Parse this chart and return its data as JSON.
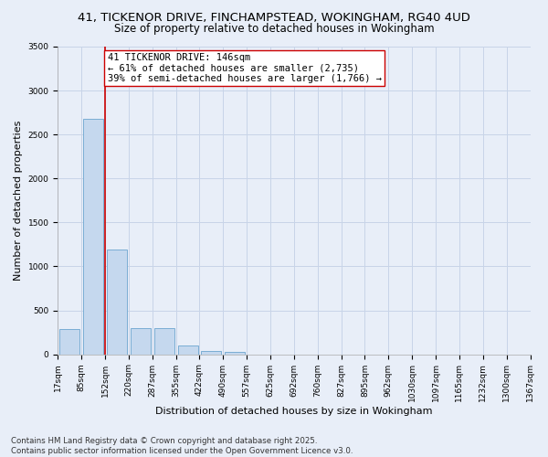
{
  "title_line1": "41, TICKENOR DRIVE, FINCHAMPSTEAD, WOKINGHAM, RG40 4UD",
  "title_line2": "Size of property relative to detached houses in Wokingham",
  "xlabel": "Distribution of detached houses by size in Wokingham",
  "ylabel": "Number of detached properties",
  "bin_labels": [
    "17sqm",
    "85sqm",
    "152sqm",
    "220sqm",
    "287sqm",
    "355sqm",
    "422sqm",
    "490sqm",
    "557sqm",
    "625sqm",
    "692sqm",
    "760sqm",
    "827sqm",
    "895sqm",
    "962sqm",
    "1030sqm",
    "1097sqm",
    "1165sqm",
    "1232sqm",
    "1300sqm",
    "1367sqm"
  ],
  "bar_heights": [
    285,
    2680,
    1190,
    300,
    295,
    95,
    40,
    28,
    0,
    0,
    0,
    0,
    0,
    0,
    0,
    0,
    0,
    0,
    0,
    0
  ],
  "bar_color": "#c5d8ee",
  "bar_edge_color": "#7aadd4",
  "grid_color": "#c8d4e8",
  "background_color": "#e8eef8",
  "vline_color": "#cc0000",
  "annotation_text": "41 TICKENOR DRIVE: 146sqm\n← 61% of detached houses are smaller (2,735)\n39% of semi-detached houses are larger (1,766) →",
  "annotation_box_color": "#cc0000",
  "ylim": [
    0,
    3500
  ],
  "yticks": [
    0,
    500,
    1000,
    1500,
    2000,
    2500,
    3000,
    3500
  ],
  "footer_line1": "Contains HM Land Registry data © Crown copyright and database right 2025.",
  "footer_line2": "Contains public sector information licensed under the Open Government Licence v3.0.",
  "title_fontsize": 9.5,
  "subtitle_fontsize": 8.5,
  "axis_label_fontsize": 8,
  "tick_fontsize": 6.5,
  "annotation_fontsize": 7.5,
  "footer_fontsize": 6.2
}
